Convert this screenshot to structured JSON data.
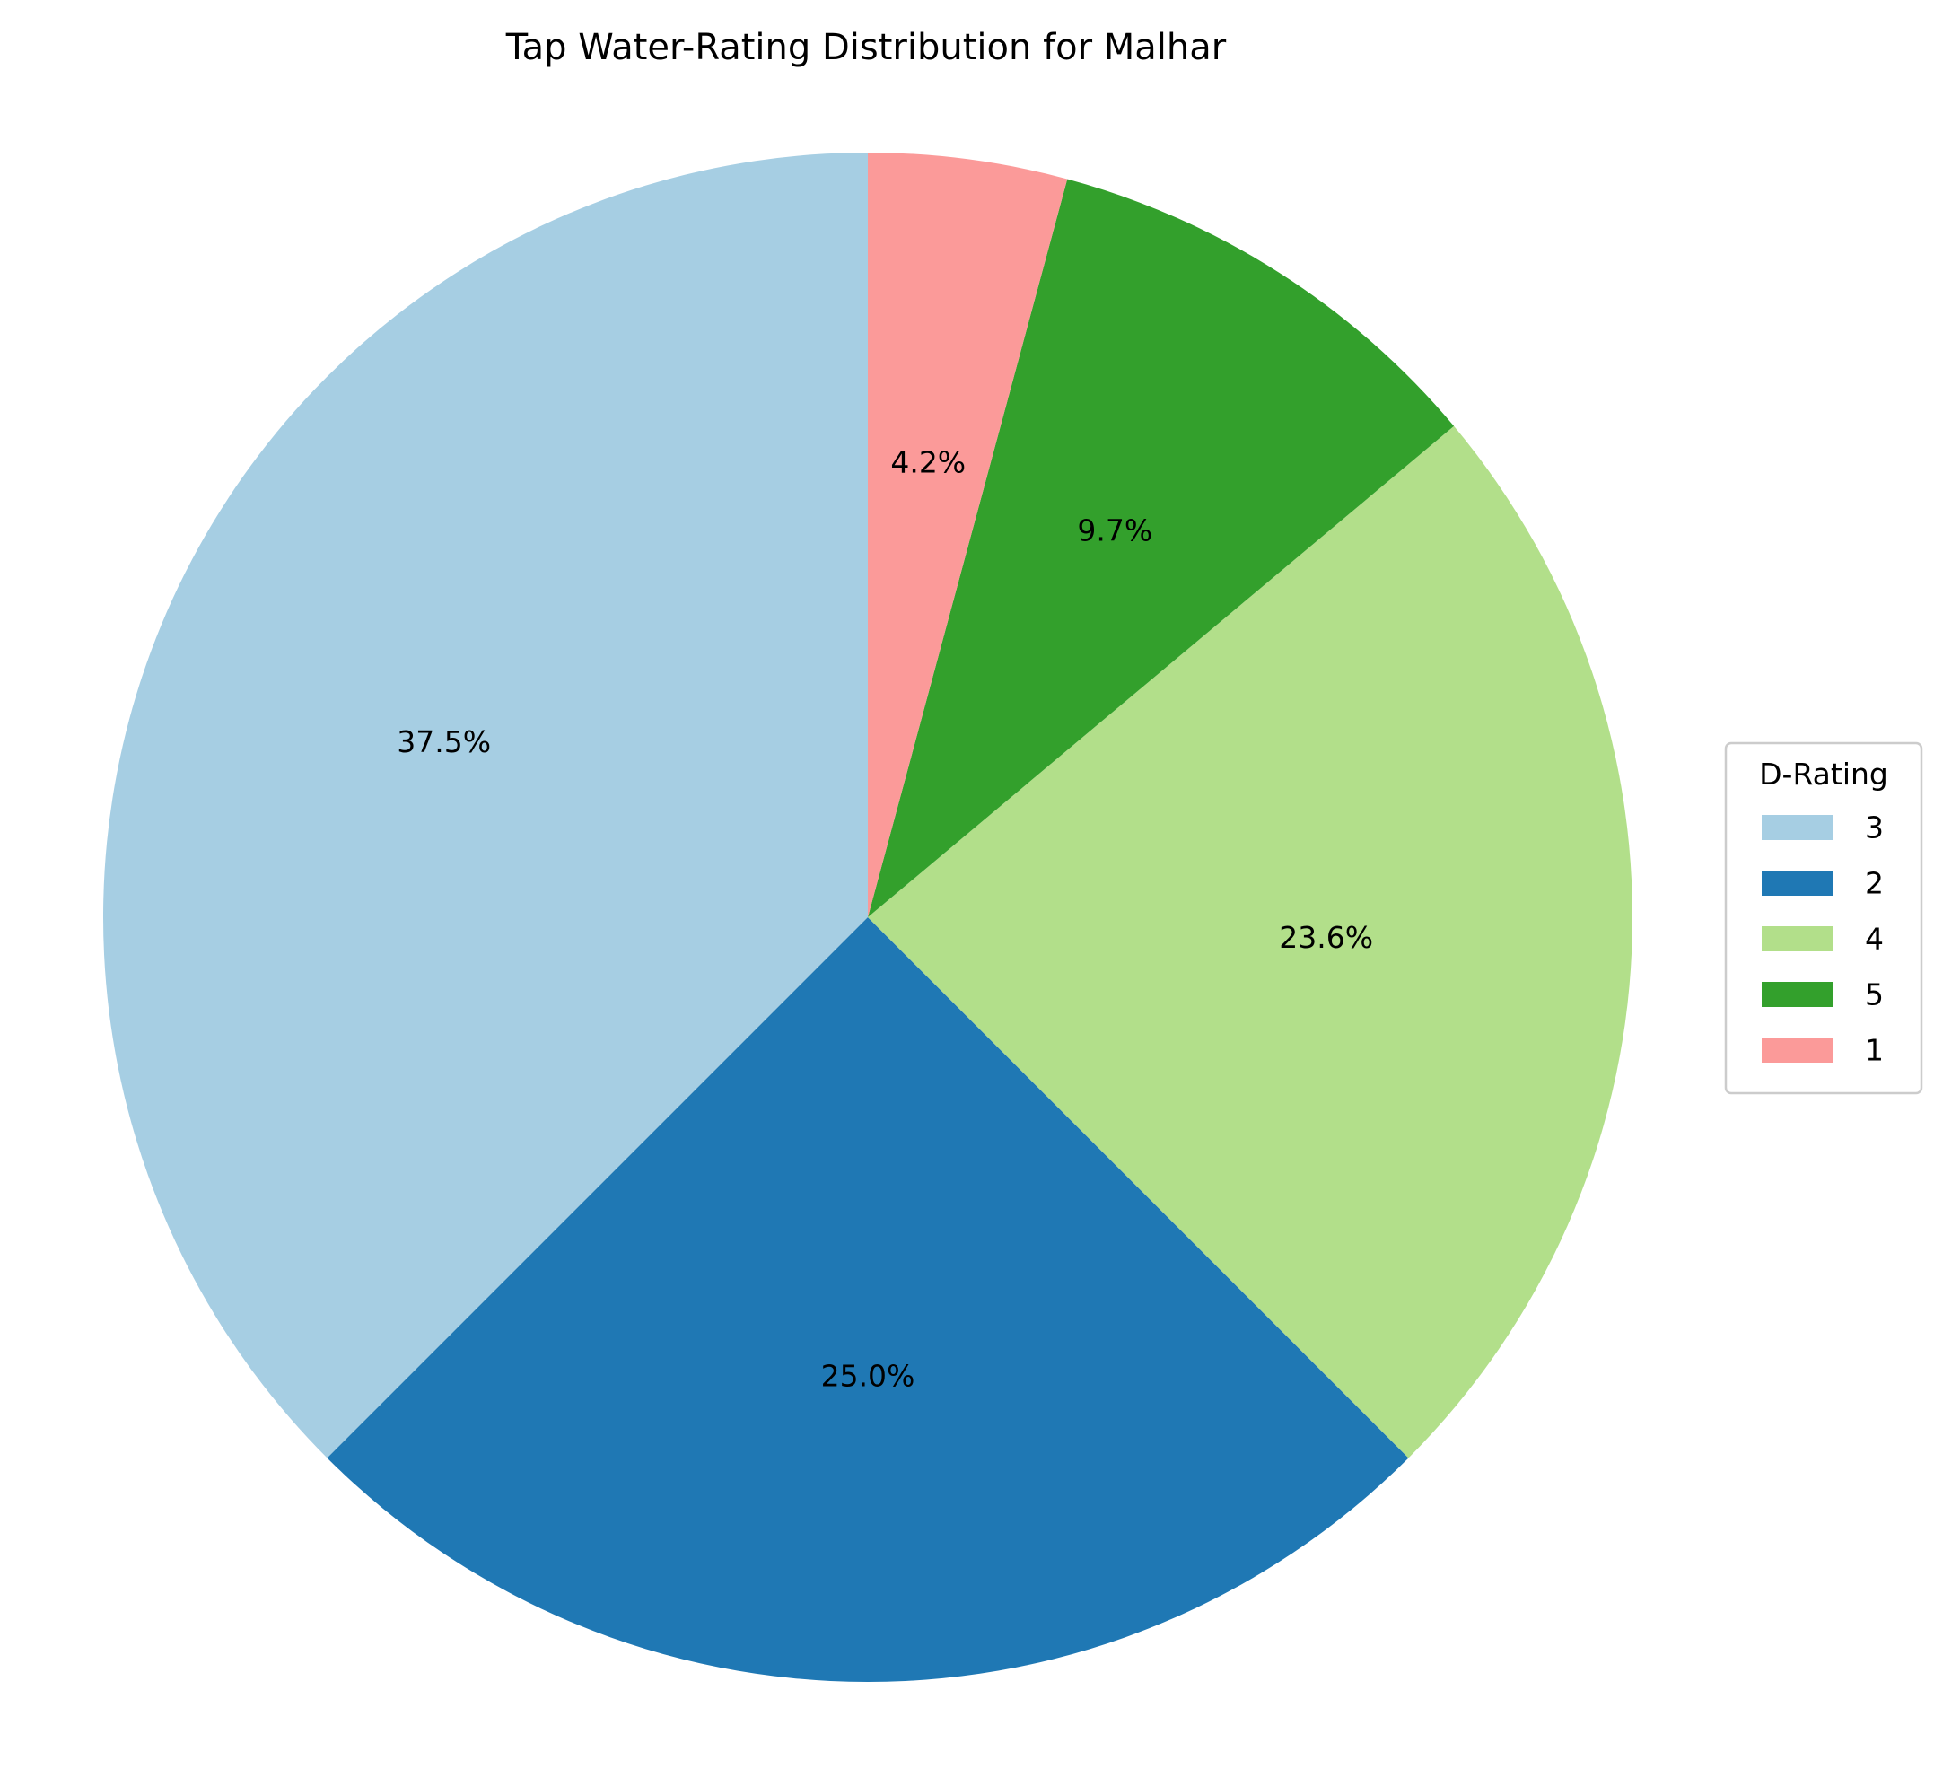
{
  "chart_data": {
    "type": "pie",
    "title": "Tap Water-Rating Distribution for Malhar",
    "legend_title": "D-Rating",
    "legend_placement": "right",
    "start_angle_deg": 90,
    "direction": "counterclockwise",
    "slices": [
      {
        "label": "3",
        "value": 37.5,
        "pct_label": "37.5%",
        "color": "#a6cee3"
      },
      {
        "label": "2",
        "value": 25.0,
        "pct_label": "25.0%",
        "color": "#1f78b4"
      },
      {
        "label": "4",
        "value": 23.6,
        "pct_label": "23.6%",
        "color": "#b2df8a"
      },
      {
        "label": "5",
        "value": 9.7,
        "pct_label": "9.7%",
        "color": "#33a02c"
      },
      {
        "label": "1",
        "value": 4.2,
        "pct_label": "4.2%",
        "color": "#fb9a99"
      }
    ]
  }
}
